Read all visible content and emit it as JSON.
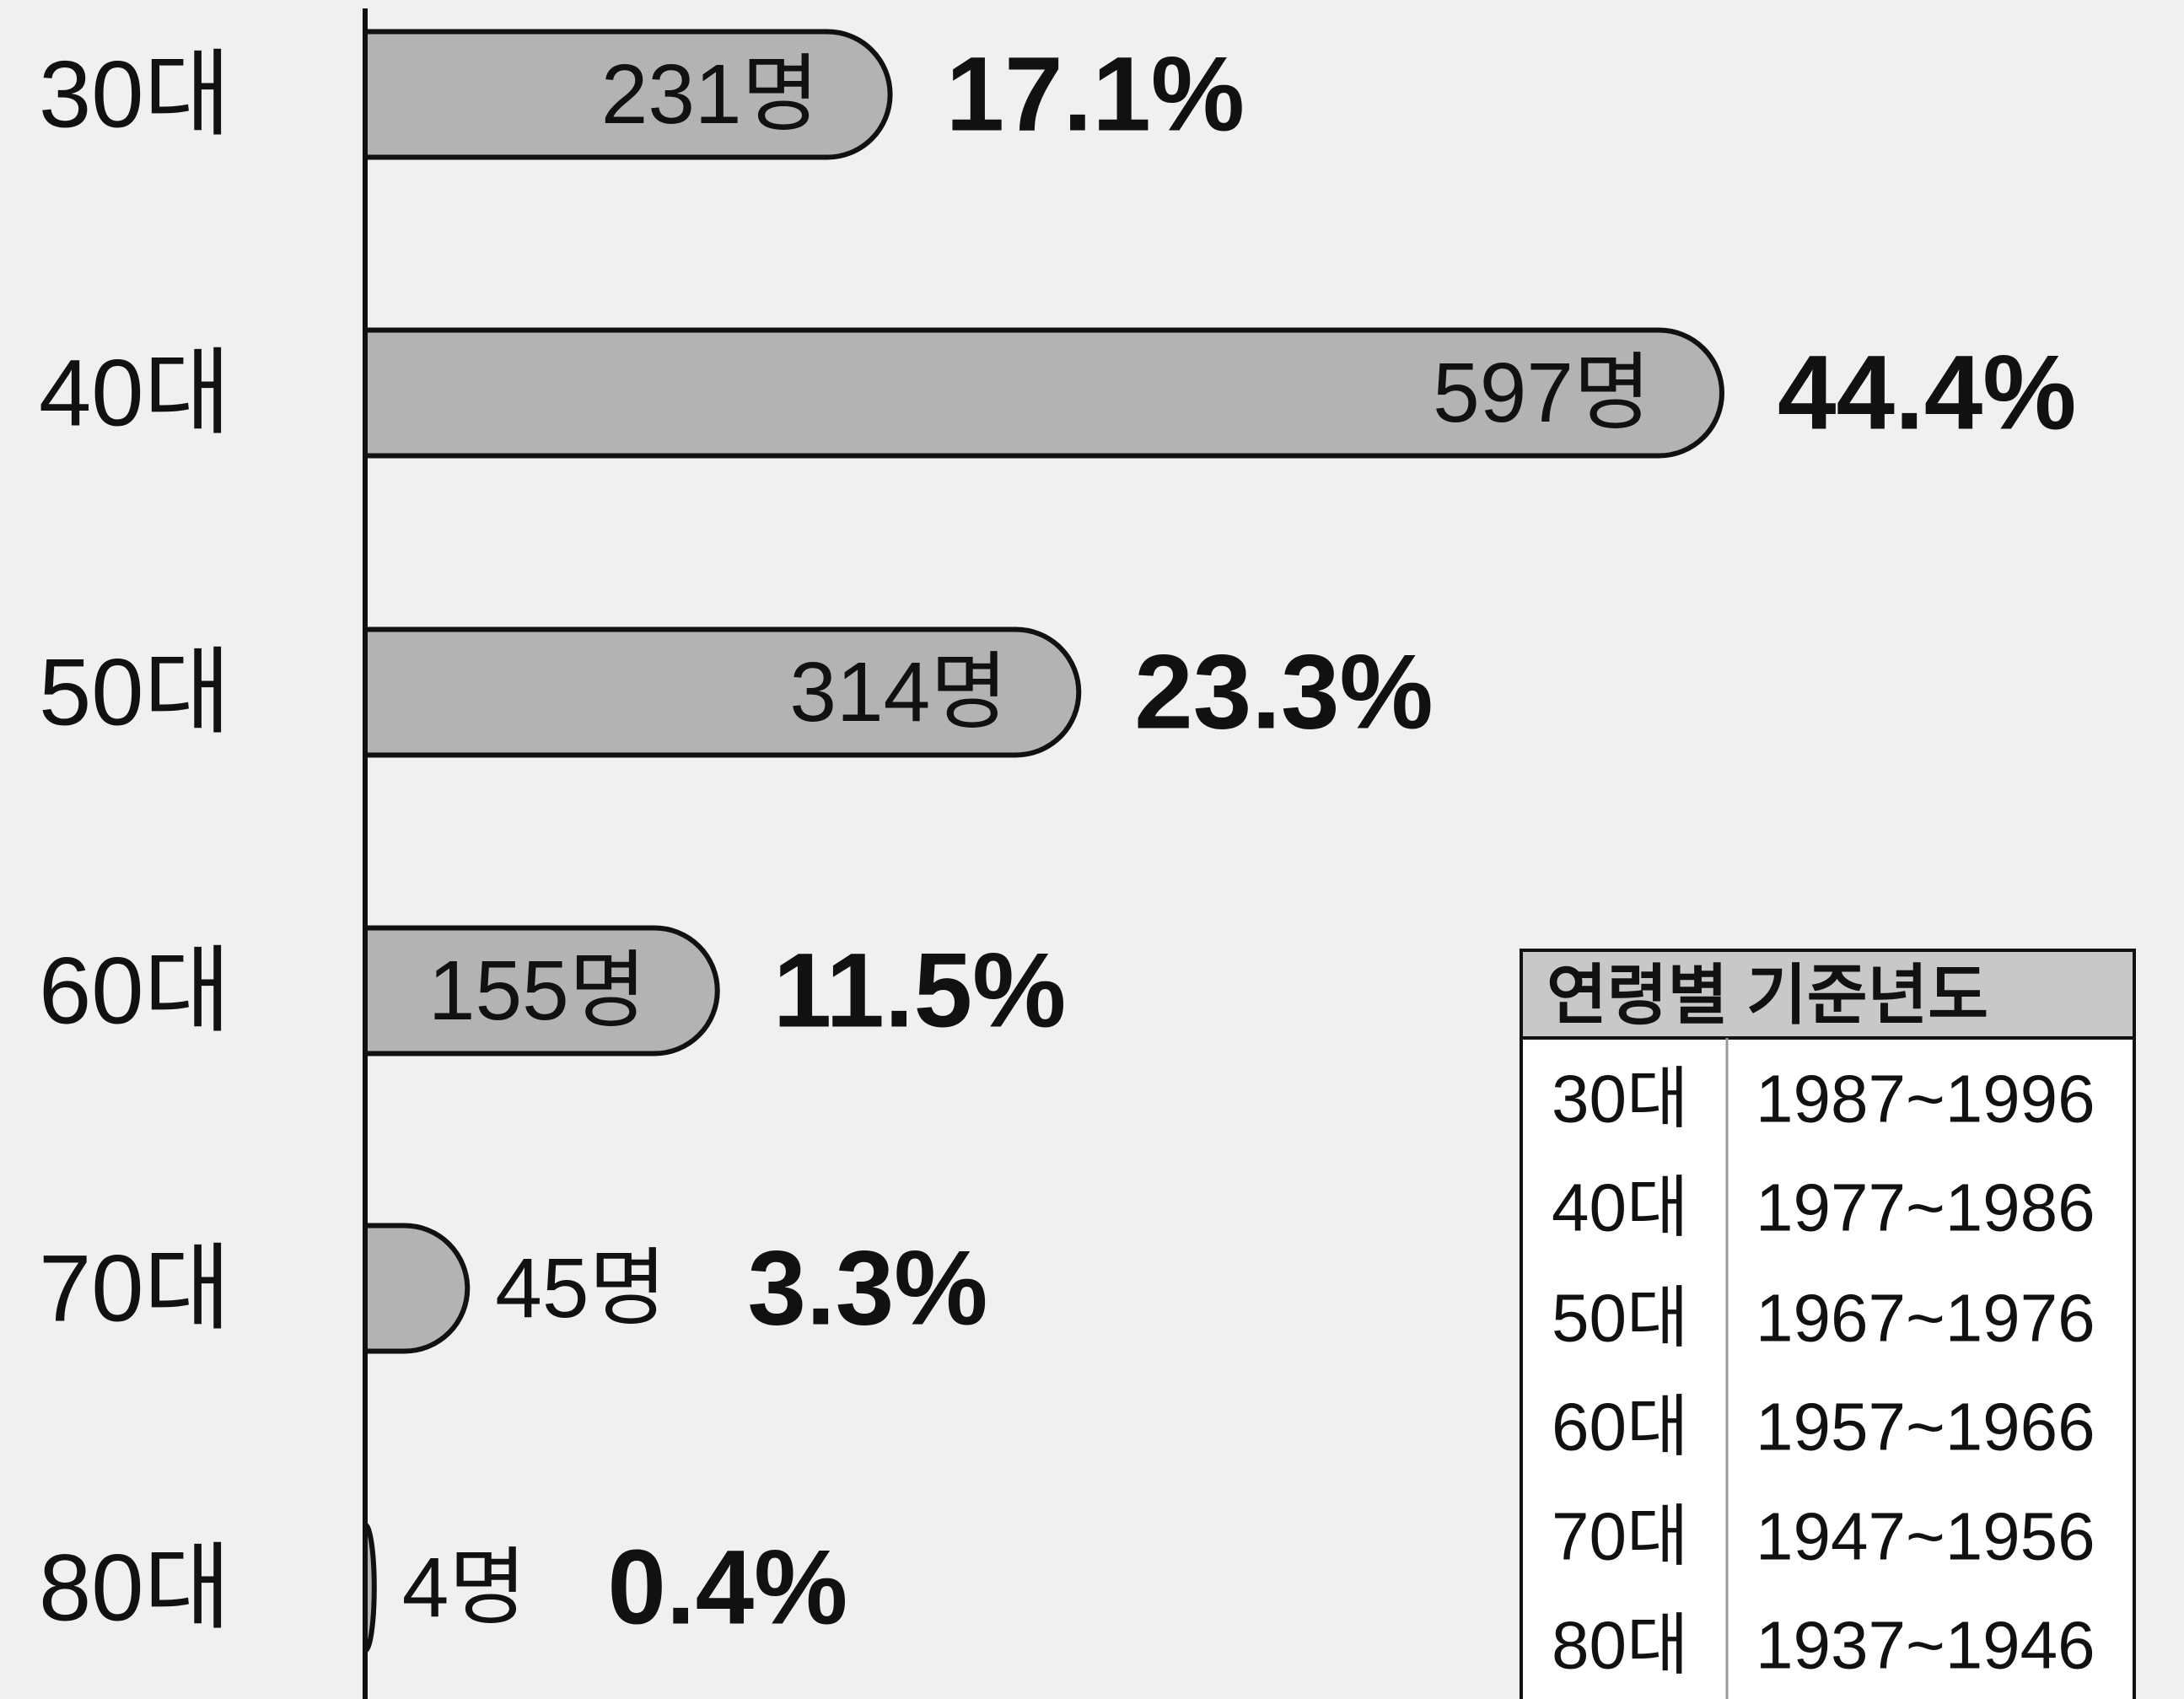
{
  "chart_data": {
    "type": "barh",
    "categories": [
      "30대",
      "40대",
      "50대",
      "60대",
      "70대",
      "80대"
    ],
    "values": [
      231,
      597,
      314,
      155,
      45,
      4
    ],
    "value_labels": [
      "231명",
      "597명",
      "314명",
      "155명",
      "45명",
      "4명"
    ],
    "shares": {
      "values": [
        17.1,
        44.4,
        23.3,
        11.5,
        3.3,
        0.4
      ],
      "value_labels": [
        "17.1%",
        "44.4%",
        "23.3%",
        "11.5%",
        "3.3%",
        "0.4%"
      ]
    },
    "color": "#b3b3b3"
  },
  "table": {
    "title": "연령별 기준년도",
    "rows": [
      [
        "30대",
        "1987~1996"
      ],
      [
        "40대",
        "1977~1986"
      ],
      [
        "50대",
        "1967~1976"
      ],
      [
        "60대",
        "1957~1966"
      ],
      [
        "70대",
        "1947~1956"
      ],
      [
        "80대",
        "1937~1946"
      ]
    ]
  }
}
